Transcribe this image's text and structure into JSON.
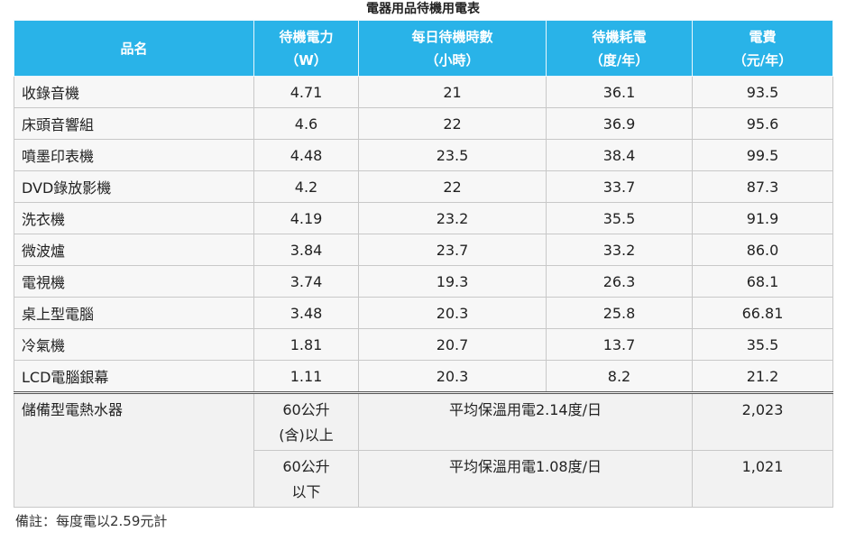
{
  "title": "電器用品待機用電表",
  "headers": [
    {
      "line1": "品名",
      "line2": ""
    },
    {
      "line1": "待機電力",
      "line2": "（W）"
    },
    {
      "line1": "每日待機時數",
      "line2": "（小時）"
    },
    {
      "line1": "待機耗電",
      "line2": "（度/年）"
    },
    {
      "line1": "電費",
      "line2": "（元/年）"
    }
  ],
  "rows": [
    [
      "收錄音機",
      "4.71",
      "21",
      "36.1",
      "93.5"
    ],
    [
      "床頭音響組",
      "4.6",
      "22",
      "36.9",
      "95.6"
    ],
    [
      "噴墨印表機",
      "4.48",
      "23.5",
      "38.4",
      "99.5"
    ],
    [
      "DVD錄放影機",
      "4.2",
      "22",
      "33.7",
      "87.3"
    ],
    [
      "洗衣機",
      "4.19",
      "23.2",
      "35.5",
      "91.9"
    ],
    [
      "微波爐",
      "3.84",
      "23.7",
      "33.2",
      "86.0"
    ],
    [
      "電視機",
      "3.74",
      "19.3",
      "26.3",
      "68.1"
    ],
    [
      "桌上型電腦",
      "3.48",
      "20.3",
      "25.8",
      "66.81"
    ],
    [
      "冷氣機",
      "1.81",
      "20.7",
      "13.7",
      "35.5"
    ],
    [
      "LCD電腦銀幕",
      "1.11",
      "20.3",
      "8.2",
      "21.2"
    ]
  ],
  "water_heater": {
    "name": "儲備型電熱水器",
    "options": [
      {
        "capacity_line1": "60公升",
        "capacity_line2": "(含)以上",
        "usage": "平均保溫用電2.14度/日",
        "cost": "2,023"
      },
      {
        "capacity_line1": "60公升",
        "capacity_line2": "以下",
        "usage": "平均保溫用電1.08度/日",
        "cost": "1,021"
      }
    ]
  },
  "note": "備註：每度電以2.59元計"
}
